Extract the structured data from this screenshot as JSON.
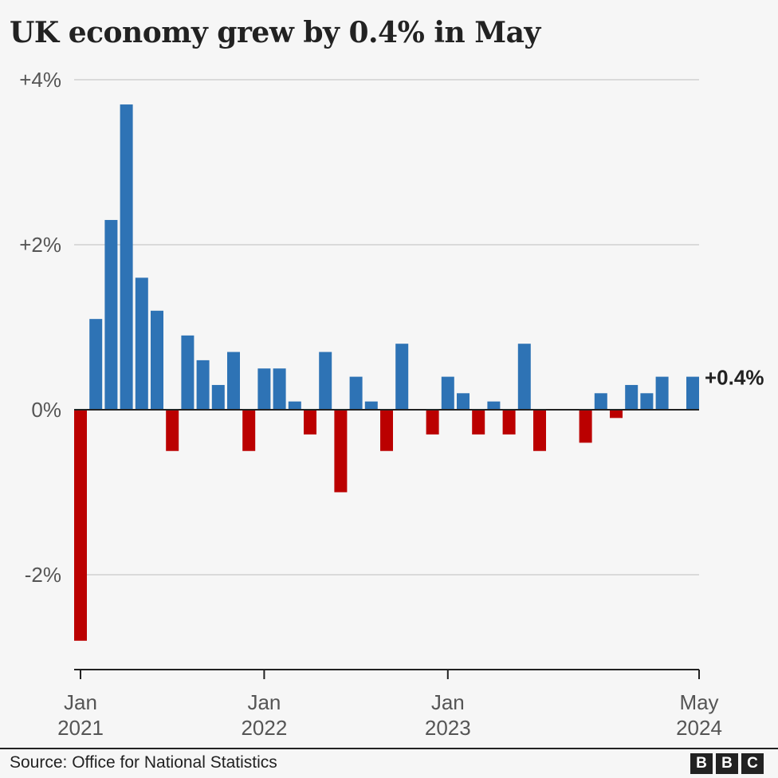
{
  "title": "UK economy grew by 0.4% in May",
  "source": "Source: Office for National Statistics",
  "logo": "BBC",
  "chart_data": {
    "type": "bar",
    "title": "UK economy grew by 0.4% in May",
    "xlabel": "",
    "ylabel": "",
    "ylim": [
      -2.9,
      4
    ],
    "grid": true,
    "y_ticks": [
      {
        "value": 4,
        "label": "+4%"
      },
      {
        "value": 2,
        "label": "+2%"
      },
      {
        "value": 0,
        "label": "0%"
      },
      {
        "value": -2,
        "label": "-2%"
      }
    ],
    "x_ticks": [
      {
        "index": 0,
        "label": [
          "Jan",
          "2021"
        ]
      },
      {
        "index": 12,
        "label": [
          "Jan",
          "2022"
        ]
      },
      {
        "index": 24,
        "label": [
          "Jan",
          "2023"
        ]
      },
      {
        "index": 40,
        "label": [
          "May",
          "2024"
        ]
      }
    ],
    "categories": [
      "Jan 2021",
      "Feb 2021",
      "Mar 2021",
      "Apr 2021",
      "May 2021",
      "Jun 2021",
      "Jul 2021",
      "Aug 2021",
      "Sep 2021",
      "Oct 2021",
      "Nov 2021",
      "Dec 2021",
      "Jan 2022",
      "Feb 2022",
      "Mar 2022",
      "Apr 2022",
      "May 2022",
      "Jun 2022",
      "Jul 2022",
      "Aug 2022",
      "Sep 2022",
      "Oct 2022",
      "Nov 2022",
      "Dec 2022",
      "Jan 2023",
      "Feb 2023",
      "Mar 2023",
      "Apr 2023",
      "May 2023",
      "Jun 2023",
      "Jul 2023",
      "Aug 2023",
      "Sep 2023",
      "Oct 2023",
      "Nov 2023",
      "Dec 2023",
      "Jan 2024",
      "Feb 2024",
      "Mar 2024",
      "Apr 2024",
      "May 2024"
    ],
    "values": [
      -2.8,
      1.1,
      2.3,
      3.7,
      1.6,
      1.2,
      -0.5,
      0.9,
      0.6,
      0.3,
      0.7,
      -0.5,
      0.5,
      0.5,
      0.1,
      -0.3,
      0.7,
      -1.0,
      0.4,
      0.1,
      -0.5,
      0.8,
      0.0,
      -0.3,
      0.4,
      0.2,
      -0.3,
      0.1,
      -0.3,
      0.8,
      -0.5,
      0.0,
      0.0,
      -0.4,
      0.2,
      -0.1,
      0.3,
      0.2,
      0.4,
      0.0,
      0.4
    ],
    "annotation": "+0.4%",
    "colors": {
      "positive": "#2e73b5",
      "negative": "#bb0000"
    }
  }
}
